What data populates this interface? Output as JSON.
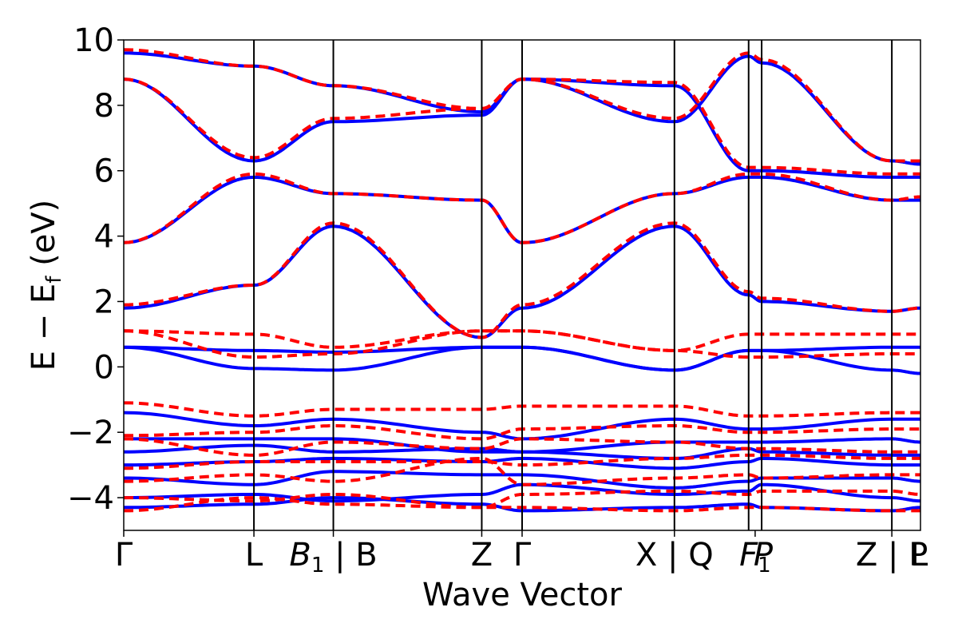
{
  "chart_data": {
    "type": "line",
    "xlabel": "Wave Vector",
    "ylabel_main": "E − E",
    "ylabel_sub": "f",
    "ylabel_unit": " (eV)",
    "ylim": [
      -5,
      10
    ],
    "xlim": [
      0,
      6.12
    ],
    "y_ticks": [
      {
        "value": 10,
        "label": "10"
      },
      {
        "value": 8,
        "label": "8"
      },
      {
        "value": 6,
        "label": "6"
      },
      {
        "value": 4,
        "label": "4"
      },
      {
        "value": 2,
        "label": "2"
      },
      {
        "value": 0,
        "label": "0"
      },
      {
        "value": -2,
        "label": "−2"
      },
      {
        "value": -4,
        "label": "−4"
      }
    ],
    "kpoint_lines": [
      1.0,
      1.61,
      2.75,
      3.06,
      4.23,
      4.8,
      4.9,
      5.9
    ],
    "kpoint_labels": [
      {
        "x": 0.0,
        "label": "Γ"
      },
      {
        "x": 1.0,
        "label": "L"
      },
      {
        "x": 1.61,
        "label": "B",
        "sub": "1",
        "suffix": " | B",
        "italic": true
      },
      {
        "x": 2.75,
        "label": "Z"
      },
      {
        "x": 3.06,
        "label": "Γ"
      },
      {
        "x": 4.23,
        "label": "X | Q"
      },
      {
        "x": 4.85,
        "label": "F",
        "overlay": "P",
        "sub": "1",
        "italic": true
      },
      {
        "x": 5.9,
        "label": "Z | P",
        "overlay": "L"
      }
    ],
    "segment_ends": [
      0,
      1.0,
      1.61,
      2.75,
      3.06,
      4.23,
      4.8,
      4.9,
      5.9,
      6.12
    ],
    "series": [
      {
        "name": "blue-solid",
        "color": "#0000ff",
        "dash": "none",
        "bands": [
          [
            -4.3,
            -4.2,
            -4.0,
            -4.2,
            -4.4,
            -4.3,
            -4.2,
            -4.3,
            -4.4,
            -4.3
          ],
          [
            -4.0,
            -3.9,
            -4.1,
            -3.9,
            -3.6,
            -3.9,
            -3.8,
            -3.6,
            -4.0,
            -4.1
          ],
          [
            -3.4,
            -3.6,
            -3.2,
            -3.3,
            -3.3,
            -3.7,
            -3.5,
            -3.4,
            -3.4,
            -3.5
          ],
          [
            -3.0,
            -2.9,
            -2.8,
            -2.9,
            -2.8,
            -3.1,
            -2.9,
            -2.8,
            -3.0,
            -3.0
          ],
          [
            -2.6,
            -2.4,
            -2.6,
            -2.5,
            -2.6,
            -2.8,
            -2.5,
            -2.6,
            -2.7,
            -2.7
          ],
          [
            -2.2,
            -2.2,
            -2.2,
            -2.6,
            -2.6,
            -2.3,
            -2.3,
            -2.3,
            -2.2,
            -2.3
          ],
          [
            -1.4,
            -1.8,
            -1.6,
            -2.0,
            -2.2,
            -1.6,
            -1.9,
            -1.9,
            -1.6,
            -1.6
          ],
          [
            0.6,
            -0.05,
            -0.1,
            0.6,
            0.6,
            -0.1,
            0.5,
            0.5,
            -0.1,
            -0.2
          ],
          [
            0.6,
            0.5,
            0.45,
            0.6,
            0.6,
            -0.1,
            0.5,
            0.5,
            0.6,
            0.6
          ],
          [
            1.8,
            2.5,
            4.3,
            0.9,
            1.8,
            4.3,
            2.2,
            2.0,
            1.7,
            1.8
          ],
          [
            3.8,
            5.8,
            5.3,
            5.1,
            3.8,
            5.3,
            5.8,
            5.8,
            5.1,
            5.1
          ],
          [
            8.8,
            6.3,
            7.5,
            7.7,
            8.8,
            8.6,
            6.0,
            6.0,
            5.8,
            5.8
          ],
          [
            9.6,
            9.2,
            8.6,
            7.8,
            8.8,
            7.5,
            9.5,
            9.3,
            6.3,
            6.2
          ]
        ]
      },
      {
        "name": "red-dashed",
        "color": "#ff0000",
        "dash": "12,7",
        "bands": [
          [
            -4.4,
            -4.0,
            -4.2,
            -4.3,
            -4.3,
            -4.4,
            -4.3,
            -4.3,
            -4.4,
            -4.4
          ],
          [
            -4.0,
            -4.1,
            -3.9,
            -4.3,
            -3.9,
            -3.8,
            -3.9,
            -3.8,
            -3.8,
            -3.9
          ],
          [
            -3.5,
            -3.3,
            -3.5,
            -2.8,
            -3.6,
            -3.4,
            -3.3,
            -3.4,
            -3.3,
            -3.3
          ],
          [
            -3.1,
            -2.9,
            -2.9,
            -2.9,
            -3.0,
            -2.8,
            -2.7,
            -2.7,
            -2.8,
            -2.8
          ],
          [
            -2.2,
            -2.7,
            -2.3,
            -2.5,
            -2.2,
            -2.3,
            -2.5,
            -2.5,
            -2.6,
            -2.6
          ],
          [
            -2.1,
            -2.0,
            -1.8,
            -2.2,
            -1.9,
            -1.8,
            -2.0,
            -2.0,
            -1.9,
            -1.9
          ],
          [
            -1.1,
            -1.5,
            -1.3,
            -1.3,
            -1.2,
            -1.2,
            -1.5,
            -1.5,
            -1.4,
            -1.4
          ],
          [
            1.1,
            0.3,
            0.4,
            1.1,
            1.1,
            0.5,
            0.3,
            0.3,
            0.4,
            0.4
          ],
          [
            1.1,
            1.0,
            0.6,
            1.1,
            1.1,
            0.5,
            1.0,
            1.0,
            1.0,
            1.0
          ],
          [
            1.9,
            2.5,
            4.4,
            0.9,
            1.9,
            4.4,
            2.3,
            2.1,
            1.7,
            1.8
          ],
          [
            3.8,
            5.9,
            5.3,
            5.1,
            3.8,
            5.3,
            5.9,
            5.9,
            5.1,
            5.2
          ],
          [
            8.8,
            6.4,
            7.6,
            7.9,
            8.8,
            8.7,
            6.1,
            6.1,
            5.9,
            5.9
          ],
          [
            9.7,
            9.2,
            8.6,
            7.9,
            8.8,
            7.6,
            9.6,
            9.4,
            6.3,
            6.3
          ]
        ]
      }
    ]
  }
}
